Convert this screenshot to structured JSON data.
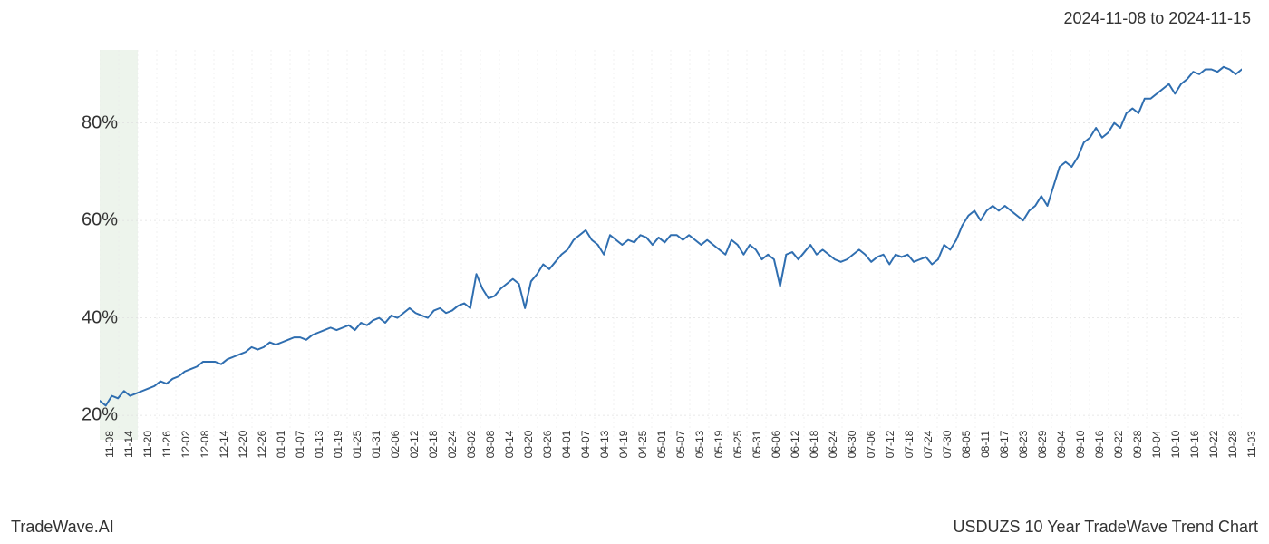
{
  "date_range_label": "2024-11-08 to 2024-11-15",
  "footer_left": "TradeWave.AI",
  "footer_right": "USDUZS 10 Year TradeWave Trend Chart",
  "chart": {
    "type": "line",
    "background_color": "#ffffff",
    "line_color": "#2f6eb0",
    "line_width": 2,
    "grid_color_minor": "#e9e9e9",
    "grid_color_major": "#e0e0e0",
    "highlight_band_color": "#dce9d9",
    "highlight_band_opacity": 0.5,
    "highlight_start_index": 0,
    "highlight_end_index": 2,
    "axis_font_size": 20,
    "xtick_font_size": 12,
    "text_color": "#333333",
    "ylim": [
      15,
      95
    ],
    "ytick_positions": [
      20,
      40,
      60,
      80
    ],
    "ytick_labels": [
      "20%",
      "40%",
      "60%",
      "80%"
    ],
    "x_labels": [
      "11-08",
      "11-14",
      "11-20",
      "11-26",
      "12-02",
      "12-08",
      "12-14",
      "12-20",
      "12-26",
      "01-01",
      "01-07",
      "01-13",
      "01-19",
      "01-25",
      "01-31",
      "02-06",
      "02-12",
      "02-18",
      "02-24",
      "03-02",
      "03-08",
      "03-14",
      "03-20",
      "03-26",
      "04-01",
      "04-07",
      "04-13",
      "04-19",
      "04-25",
      "05-01",
      "05-07",
      "05-13",
      "05-19",
      "05-25",
      "05-31",
      "06-06",
      "06-12",
      "06-18",
      "06-24",
      "06-30",
      "07-06",
      "07-12",
      "07-18",
      "07-24",
      "07-30",
      "08-05",
      "08-11",
      "08-17",
      "08-23",
      "08-29",
      "09-04",
      "09-10",
      "09-16",
      "09-22",
      "09-28",
      "10-04",
      "10-10",
      "10-16",
      "10-22",
      "10-28",
      "11-03"
    ],
    "values": [
      23,
      22,
      24,
      23.5,
      25,
      24,
      24.5,
      25,
      25.5,
      26,
      27,
      26.5,
      27.5,
      28,
      29,
      29.5,
      30,
      31,
      31,
      31,
      30.5,
      31.5,
      32,
      32.5,
      33,
      34,
      33.5,
      34,
      35,
      34.5,
      35,
      35.5,
      36,
      36,
      35.5,
      36.5,
      37,
      37.5,
      38,
      37.5,
      38,
      38.5,
      37.5,
      39,
      38.5,
      39.5,
      40,
      39,
      40.5,
      40,
      41,
      42,
      41,
      40.5,
      40,
      41.5,
      42,
      41,
      41.5,
      42.5,
      43,
      42,
      49,
      46,
      44,
      44.5,
      46,
      47,
      48,
      47,
      42,
      47.5,
      49,
      51,
      50,
      51.5,
      53,
      54,
      56,
      57,
      58,
      56,
      55,
      53,
      57,
      56,
      55,
      56,
      55.5,
      57,
      56.5,
      55,
      56.5,
      55.5,
      57,
      57,
      56,
      57,
      56,
      55,
      56,
      55,
      54,
      53,
      56,
      55,
      53,
      55,
      54,
      52,
      53,
      52,
      46.5,
      53,
      53.5,
      52,
      53.5,
      55,
      53,
      54,
      53,
      52,
      51.5,
      52,
      53,
      54,
      53,
      51.5,
      52.5,
      53,
      51,
      53,
      52.5,
      53,
      51.5,
      52,
      52.5,
      51,
      52,
      55,
      54,
      56,
      59,
      61,
      62,
      60,
      62,
      63,
      62,
      63,
      62,
      61,
      60,
      62,
      63,
      65,
      63,
      67,
      71,
      72,
      71,
      73,
      76,
      77,
      79,
      77,
      78,
      80,
      79,
      82,
      83,
      82,
      85,
      85,
      86,
      87,
      88,
      86,
      88,
      89,
      90.5,
      90,
      91,
      91,
      90.5,
      91.5,
      91,
      90,
      91
    ]
  }
}
